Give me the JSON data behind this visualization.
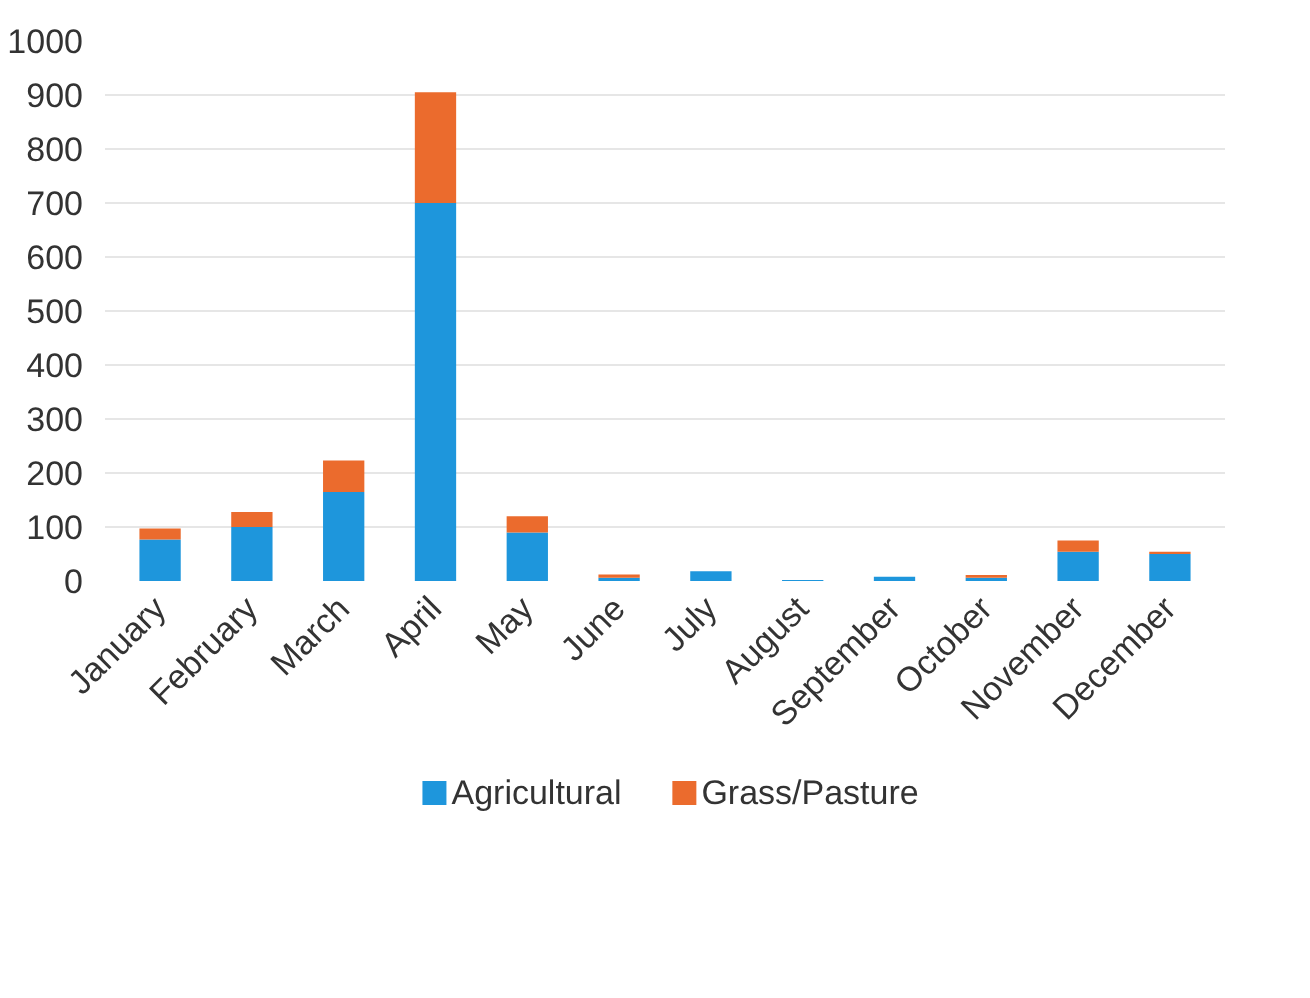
{
  "chart_data": {
    "type": "bar",
    "stacked": true,
    "categories": [
      "January",
      "February",
      "March",
      "April",
      "May",
      "June",
      "July",
      "August",
      "September",
      "October",
      "November",
      "December"
    ],
    "series": [
      {
        "name": "Agricultural",
        "color": "#1e96dc",
        "values": [
          77,
          100,
          165,
          700,
          90,
          6,
          18,
          2,
          8,
          6,
          54,
          50
        ]
      },
      {
        "name": "Grass/Pasture",
        "color": "#eb6b2d",
        "values": [
          20,
          28,
          58,
          205,
          30,
          6,
          0,
          0,
          0,
          5,
          21,
          4
        ]
      }
    ],
    "ylim": [
      0,
      1000
    ],
    "yticks": [
      0,
      100,
      200,
      300,
      400,
      500,
      600,
      700,
      800,
      900,
      1000
    ],
    "grid": "y",
    "legend": "bottom"
  }
}
